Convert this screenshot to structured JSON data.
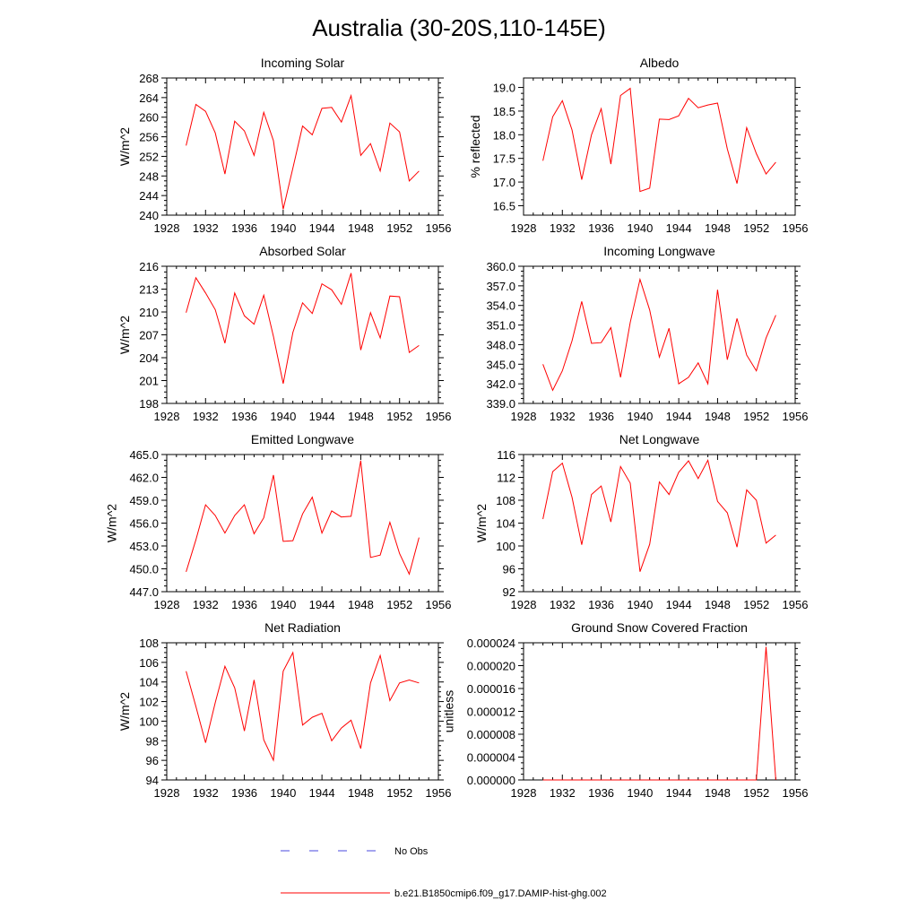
{
  "title": "Australia (30-20S,110-145E)",
  "legend": [
    {
      "label": "No Obs",
      "color": "#4a4adf",
      "dash": "10,22"
    },
    {
      "label": "b.e21.B1850cmip6.f09_g17.DAMIP-hist-ghg.002",
      "color": "#ff0000",
      "dash": ""
    }
  ],
  "chart_data": [
    {
      "type": "line",
      "title": "Incoming Solar",
      "ylabel": "W/m^2",
      "xlim": [
        1928,
        1956
      ],
      "ylim": [
        240,
        268
      ],
      "xticks": [
        1928,
        1932,
        1936,
        1940,
        1944,
        1948,
        1952,
        1956
      ],
      "yticks": [
        "240",
        "244",
        "248",
        "252",
        "256",
        "260",
        "264",
        "268"
      ],
      "x": [
        1930,
        1931,
        1932,
        1933,
        1934,
        1935,
        1936,
        1937,
        1938,
        1939,
        1940,
        1941,
        1942,
        1943,
        1944,
        1945,
        1946,
        1947,
        1948,
        1949,
        1950,
        1951,
        1952,
        1953,
        1954
      ],
      "series": [
        {
          "color": "#ff0000",
          "values": [
            254.2,
            262.6,
            261.2,
            256.8,
            248.4,
            259.2,
            257.2,
            252.2,
            261.0,
            255.2,
            241.2,
            249.6,
            258.2,
            256.4,
            261.8,
            262.0,
            259.0,
            264.4,
            252.2,
            254.6,
            249.0,
            258.8,
            257.0,
            247.0,
            249.0
          ]
        }
      ]
    },
    {
      "type": "line",
      "title": "Albedo",
      "ylabel": "% reflected",
      "xlim": [
        1928,
        1956
      ],
      "ylim": [
        16.3,
        19.2
      ],
      "xticks": [
        1928,
        1932,
        1936,
        1940,
        1944,
        1948,
        1952,
        1956
      ],
      "yticks": [
        "16.5",
        "17.0",
        "17.5",
        "18.0",
        "18.5",
        "19.0"
      ],
      "x": [
        1930,
        1931,
        1932,
        1933,
        1934,
        1935,
        1936,
        1937,
        1938,
        1939,
        1940,
        1941,
        1942,
        1943,
        1944,
        1945,
        1946,
        1947,
        1948,
        1949,
        1950,
        1951,
        1952,
        1953,
        1954
      ],
      "series": [
        {
          "color": "#ff0000",
          "values": [
            17.45,
            18.38,
            18.72,
            18.1,
            17.05,
            18.0,
            18.55,
            17.38,
            18.83,
            18.98,
            16.8,
            16.87,
            18.33,
            18.32,
            18.4,
            18.77,
            18.57,
            18.63,
            18.67,
            17.7,
            16.97,
            18.15,
            17.6,
            17.17,
            17.42
          ]
        }
      ]
    },
    {
      "type": "line",
      "title": "Absorbed Solar",
      "ylabel": "W/m^2",
      "xlim": [
        1928,
        1956
      ],
      "ylim": [
        198,
        216
      ],
      "xticks": [
        1928,
        1932,
        1936,
        1940,
        1944,
        1948,
        1952,
        1956
      ],
      "yticks": [
        "198",
        "201",
        "204",
        "207",
        "210",
        "213",
        "216"
      ],
      "x": [
        1930,
        1931,
        1932,
        1933,
        1934,
        1935,
        1936,
        1937,
        1938,
        1939,
        1940,
        1941,
        1942,
        1943,
        1944,
        1945,
        1946,
        1947,
        1948,
        1949,
        1950,
        1951,
        1952,
        1953,
        1954
      ],
      "series": [
        {
          "color": "#ff0000",
          "values": [
            209.9,
            214.5,
            212.5,
            210.3,
            205.9,
            212.5,
            209.5,
            208.4,
            212.2,
            206.8,
            200.6,
            207.3,
            211.2,
            209.8,
            213.7,
            212.9,
            211.0,
            215.1,
            205.0,
            209.9,
            206.6,
            212.1,
            212.0,
            204.7,
            205.6
          ]
        }
      ]
    },
    {
      "type": "line",
      "title": "Incoming Longwave",
      "ylabel": "",
      "xlim": [
        1928,
        1956
      ],
      "ylim": [
        339,
        360
      ],
      "xticks": [
        1928,
        1932,
        1936,
        1940,
        1944,
        1948,
        1952,
        1956
      ],
      "yticks": [
        "339.0",
        "342.0",
        "345.0",
        "348.0",
        "351.0",
        "354.0",
        "357.0",
        "360.0"
      ],
      "x": [
        1930,
        1931,
        1932,
        1933,
        1934,
        1935,
        1936,
        1937,
        1938,
        1939,
        1940,
        1941,
        1942,
        1943,
        1944,
        1945,
        1946,
        1947,
        1948,
        1949,
        1950,
        1951,
        1952,
        1953,
        1954
      ],
      "series": [
        {
          "color": "#ff0000",
          "values": [
            345.0,
            341.0,
            344.0,
            348.6,
            354.6,
            348.2,
            348.3,
            350.6,
            343.0,
            351.4,
            358.0,
            353.3,
            346.1,
            350.5,
            342.0,
            343.0,
            345.2,
            342.0,
            356.4,
            345.7,
            352.0,
            346.4,
            344.0,
            349.0,
            352.5
          ]
        }
      ]
    },
    {
      "type": "line",
      "title": "Emitted Longwave",
      "ylabel": "W/m^2",
      "xlim": [
        1928,
        1956
      ],
      "ylim": [
        447,
        465
      ],
      "xticks": [
        1928,
        1932,
        1936,
        1940,
        1944,
        1948,
        1952,
        1956
      ],
      "yticks": [
        "447.0",
        "450.0",
        "453.0",
        "456.0",
        "459.0",
        "462.0",
        "465.0"
      ],
      "x": [
        1930,
        1931,
        1932,
        1933,
        1934,
        1935,
        1936,
        1937,
        1938,
        1939,
        1940,
        1941,
        1942,
        1943,
        1944,
        1945,
        1946,
        1947,
        1948,
        1949,
        1950,
        1951,
        1952,
        1953,
        1954
      ],
      "series": [
        {
          "color": "#ff0000",
          "values": [
            449.6,
            453.8,
            458.4,
            457.0,
            454.7,
            457.0,
            458.4,
            454.6,
            456.7,
            462.3,
            453.6,
            453.7,
            457.2,
            459.4,
            454.7,
            457.6,
            456.8,
            456.9,
            464.2,
            451.5,
            451.8,
            456.1,
            452.0,
            449.3,
            454.1
          ]
        }
      ]
    },
    {
      "type": "line",
      "title": "Net Longwave",
      "ylabel": "W/m^2",
      "xlim": [
        1928,
        1956
      ],
      "ylim": [
        92,
        116
      ],
      "xticks": [
        1928,
        1932,
        1936,
        1940,
        1944,
        1948,
        1952,
        1956
      ],
      "yticks": [
        "92",
        "96",
        "100",
        "104",
        "108",
        "112",
        "116"
      ],
      "x": [
        1930,
        1931,
        1932,
        1933,
        1934,
        1935,
        1936,
        1937,
        1938,
        1939,
        1940,
        1941,
        1942,
        1943,
        1944,
        1945,
        1946,
        1947,
        1948,
        1949,
        1950,
        1951,
        1952,
        1953,
        1954
      ],
      "series": [
        {
          "color": "#ff0000",
          "values": [
            104.7,
            113.0,
            114.5,
            108.5,
            100.2,
            109.0,
            110.5,
            104.2,
            113.9,
            111.0,
            95.5,
            100.3,
            111.2,
            109.0,
            112.9,
            114.9,
            111.8,
            115.0,
            107.8,
            105.8,
            99.8,
            109.8,
            108.0,
            100.5,
            101.9
          ]
        }
      ]
    },
    {
      "type": "line",
      "title": "Net Radiation",
      "ylabel": "W/m^2",
      "xlim": [
        1928,
        1956
      ],
      "ylim": [
        94,
        108
      ],
      "xticks": [
        1928,
        1932,
        1936,
        1940,
        1944,
        1948,
        1952,
        1956
      ],
      "yticks": [
        "94",
        "96",
        "98",
        "100",
        "102",
        "104",
        "106",
        "108"
      ],
      "x": [
        1930,
        1931,
        1932,
        1933,
        1934,
        1935,
        1936,
        1937,
        1938,
        1939,
        1940,
        1941,
        1942,
        1943,
        1944,
        1945,
        1946,
        1947,
        1948,
        1949,
        1950,
        1951,
        1952,
        1953,
        1954
      ],
      "series": [
        {
          "color": "#ff0000",
          "values": [
            105.1,
            101.5,
            97.8,
            101.9,
            105.6,
            103.4,
            99.0,
            104.2,
            98.1,
            96.0,
            105.1,
            107.0,
            99.6,
            100.4,
            100.8,
            98.0,
            99.3,
            100.1,
            97.2,
            103.9,
            106.7,
            102.1,
            103.9,
            104.2,
            103.9
          ]
        }
      ]
    },
    {
      "type": "line",
      "title": "Ground Snow Covered Fraction",
      "ylabel": "unitless",
      "xlim": [
        1928,
        1956
      ],
      "ylim": [
        0,
        2.4e-05
      ],
      "xticks": [
        1928,
        1932,
        1936,
        1940,
        1944,
        1948,
        1952,
        1956
      ],
      "yticks": [
        "0.000000",
        "0.000004",
        "0.000008",
        "0.000012",
        "0.000016",
        "0.000020",
        "0.000024"
      ],
      "x": [
        1930,
        1931,
        1932,
        1933,
        1934,
        1935,
        1936,
        1937,
        1938,
        1939,
        1940,
        1941,
        1942,
        1943,
        1944,
        1945,
        1946,
        1947,
        1948,
        1949,
        1950,
        1951,
        1952,
        1953,
        1954
      ],
      "series": [
        {
          "color": "#ff0000",
          "values": [
            0,
            0,
            0,
            0,
            0,
            0,
            0,
            0,
            0,
            0,
            0,
            0,
            0,
            0,
            0,
            0,
            0,
            0,
            0,
            0,
            0,
            0,
            0,
            2.33e-05,
            0
          ]
        }
      ]
    }
  ]
}
